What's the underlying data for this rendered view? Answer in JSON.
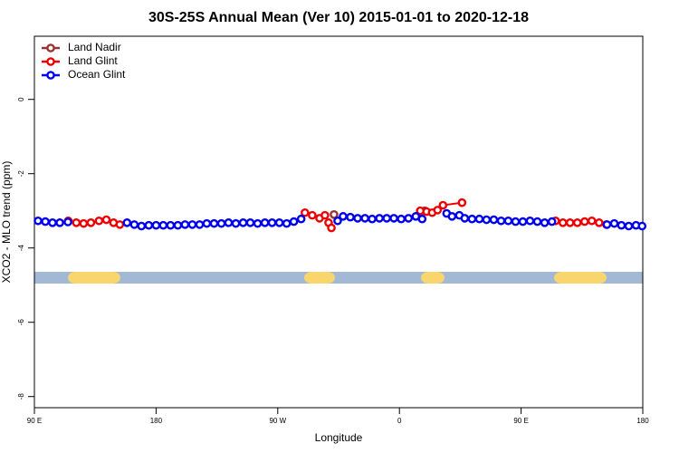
{
  "chart_data": {
    "type": "line",
    "title": "30S-25S Annual Mean (Ver 10)   2015-01-01 to 2020-12-18",
    "x_label": "Longitude",
    "y_label": "XCO2 - MLO trend (ppm)",
    "xlim": [
      90,
      540
    ],
    "xticks": [
      {
        "value": 90,
        "label": "90 E"
      },
      {
        "value": 180,
        "label": "180"
      },
      {
        "value": 270,
        "label": "90 W"
      },
      {
        "value": 360,
        "label": "0"
      },
      {
        "value": 450,
        "label": "90 E"
      },
      {
        "value": 540,
        "label": "180"
      }
    ],
    "ylim": [
      -8.3,
      1.7
    ],
    "yticks": [
      0,
      -2,
      -4,
      -6,
      -8
    ],
    "legend": "top-left",
    "series": [
      {
        "name": "Land Nadir",
        "color": "#993333",
        "x": [
          311.6,
          345,
          378.8
        ],
        "values": [
          -3.1,
          null,
          -3.0
        ]
      },
      {
        "name": "Land Glint",
        "color": "#ee0000",
        "x": [
          115.0,
          121.0,
          126.4,
          131.8,
          137.8,
          143.2,
          148.5,
          153.2,
          200,
          290.1,
          295.5,
          300.9,
          304.9,
          307.6,
          309.7,
          340,
          375.4,
          380.1,
          384.2,
          388.2,
          392.2,
          406.3,
          440,
          475.5,
          480.9,
          486.2,
          491.6,
          497.0,
          502.3,
          507.7,
          513.1
        ],
        "values": [
          -3.27,
          -3.32,
          -3.34,
          -3.32,
          -3.27,
          -3.24,
          -3.32,
          -3.37,
          null,
          -3.05,
          -3.12,
          -3.2,
          -3.12,
          -3.32,
          -3.46,
          null,
          -3.0,
          -3.02,
          -3.05,
          -2.98,
          -2.85,
          -2.78,
          null,
          -3.27,
          -3.32,
          -3.32,
          -3.32,
          -3.29,
          -3.27,
          -3.32,
          -3.37
        ]
      },
      {
        "name": "Ocean Glint",
        "color": "#0000ee",
        "x": [
          92.7,
          98.1,
          103.4,
          108.8,
          114.8,
          120,
          158.5,
          163.9,
          169.2,
          174.6,
          180.0,
          185.3,
          190.7,
          196.1,
          201.4,
          206.8,
          212.2,
          217.5,
          222.9,
          228.3,
          233.6,
          239.0,
          244.4,
          249.7,
          255.1,
          260.5,
          265.8,
          271.2,
          276.6,
          281.9,
          287.3,
          300,
          314.3,
          318.3,
          323.7,
          329.1,
          334.5,
          339.8,
          345.2,
          350.6,
          355.9,
          361.3,
          366.7,
          372.1,
          376.8,
          386,
          394.9,
          398.9,
          404.3,
          408.3,
          413.7,
          419.1,
          424.4,
          429.8,
          435.2,
          440.5,
          445.9,
          451.3,
          456.6,
          462.0,
          467.4,
          472.8,
          490,
          513.5,
          518.9,
          524.2,
          529.6,
          535.0,
          539.5
        ],
        "values": [
          -3.27,
          -3.29,
          -3.32,
          -3.32,
          -3.3,
          null,
          -3.32,
          -3.37,
          -3.41,
          -3.39,
          -3.39,
          -3.39,
          -3.39,
          -3.39,
          -3.37,
          -3.37,
          -3.37,
          -3.34,
          -3.34,
          -3.34,
          -3.32,
          -3.34,
          -3.32,
          -3.32,
          -3.34,
          -3.32,
          -3.32,
          -3.32,
          -3.34,
          -3.29,
          -3.22,
          null,
          -3.27,
          -3.15,
          -3.17,
          -3.2,
          -3.2,
          -3.22,
          -3.2,
          -3.2,
          -3.2,
          -3.22,
          -3.2,
          -3.15,
          -3.22,
          null,
          -3.07,
          -3.15,
          -3.12,
          -3.2,
          -3.22,
          -3.22,
          -3.24,
          -3.24,
          -3.27,
          -3.27,
          -3.29,
          -3.29,
          -3.27,
          -3.29,
          -3.32,
          -3.29,
          null,
          -3.37,
          -3.34,
          -3.39,
          -3.41,
          -3.39,
          -3.41
        ]
      }
    ]
  }
}
